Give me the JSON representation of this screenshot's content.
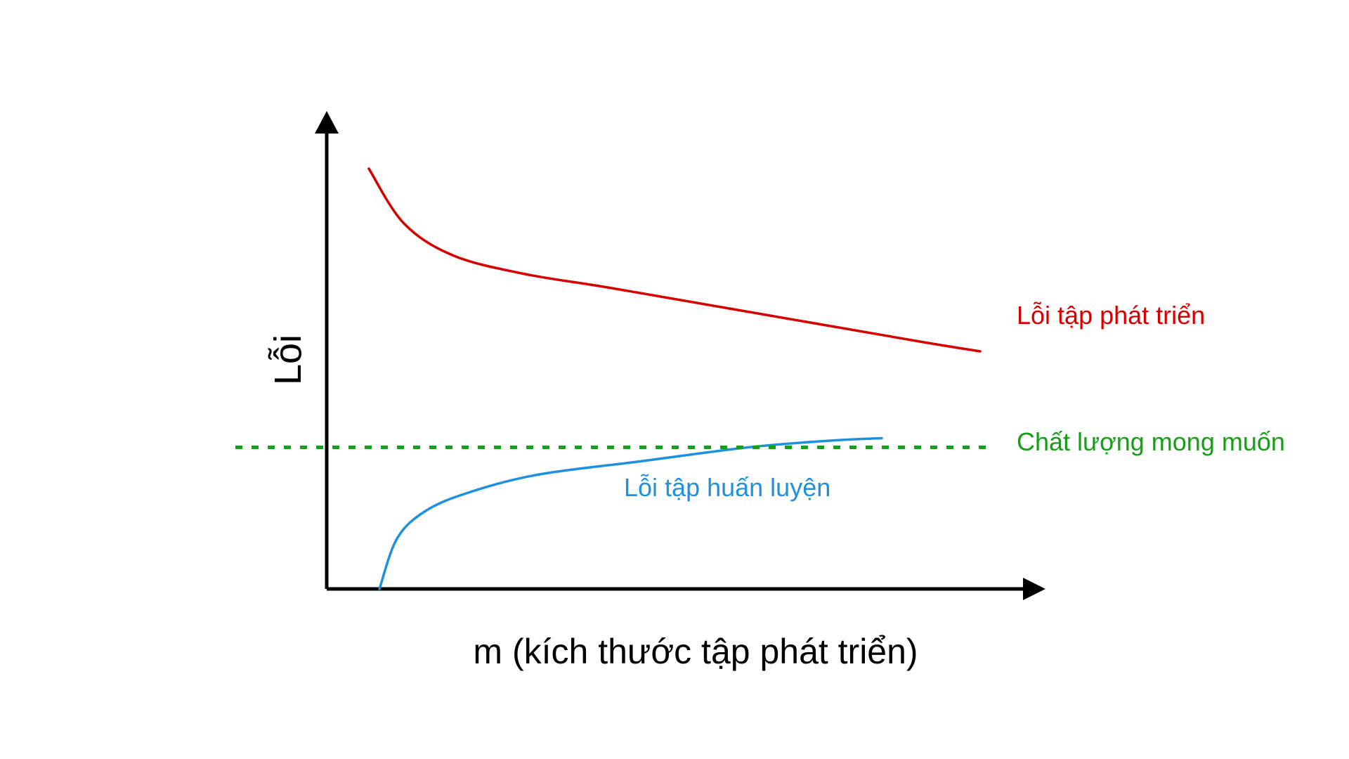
{
  "chart_data": {
    "type": "line",
    "xlabel": "m (kích thước tập phát triển)",
    "ylabel": "Lỗi",
    "ticks": false,
    "grid": false,
    "colors": {
      "axis": "#000000",
      "dev": "#d40000",
      "train": "#1e90dc",
      "desired": "#14a014"
    },
    "series": [
      {
        "name": "Lỗi tập phát triển",
        "color": "#d40000",
        "style": "solid",
        "x": [
          0.06,
          0.11,
          0.18,
          0.28,
          0.4,
          0.55,
          0.7,
          0.85,
          0.93
        ],
        "y": [
          0.92,
          0.8,
          0.73,
          0.69,
          0.66,
          0.62,
          0.58,
          0.54,
          0.52
        ]
      },
      {
        "name": "Lỗi tập huấn luyện",
        "color": "#1e90dc",
        "style": "solid",
        "x": [
          0.075,
          0.1,
          0.14,
          0.2,
          0.3,
          0.45,
          0.6,
          0.72,
          0.79
        ],
        "y": [
          0.0,
          0.11,
          0.17,
          0.21,
          0.25,
          0.28,
          0.31,
          0.325,
          0.33
        ]
      },
      {
        "name": "Chất lượng mong muốn",
        "color": "#14a014",
        "style": "dashed",
        "x": [
          -0.13,
          0.95
        ],
        "y": [
          0.31,
          0.31
        ]
      }
    ]
  }
}
